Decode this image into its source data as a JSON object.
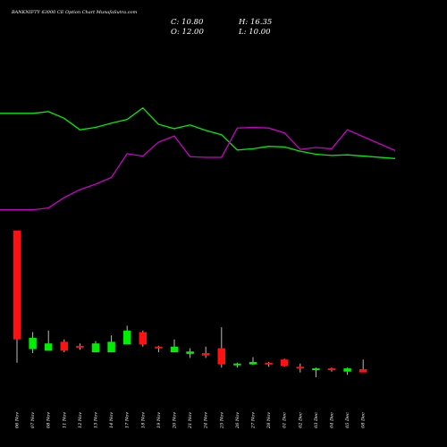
{
  "chart_data": {
    "type": "candlestick",
    "title": "BANKNIFTY 63000  CE Option  Chart MunafaSutra.com",
    "ohlc_summary": {
      "open": "O: 12.00",
      "high": "H: 16.35",
      "low": "L: 10.00",
      "close": "C: 10.80"
    },
    "categories": [
      "06 Nov",
      "07 Nov",
      "08 Nov",
      "11 Nov",
      "12 Nov",
      "13 Nov",
      "14 Nov",
      "17 Nov",
      "18 Nov",
      "19 Nov",
      "20 Nov",
      "21 Nov",
      "24 Nov",
      "25 Nov",
      "26 Nov",
      "27 Nov",
      "28 Nov",
      "01 Dec",
      "02 Dec",
      "03 Dec",
      "04 Dec",
      "05 Dec",
      "08 Dec"
    ],
    "candles": [
      {
        "o": 220,
        "h": 220,
        "l": 56,
        "c": 85
      },
      {
        "o": 73,
        "h": 94,
        "l": 68,
        "c": 87
      },
      {
        "o": 71,
        "h": 96,
        "l": 71,
        "c": 80
      },
      {
        "o": 82,
        "h": 85,
        "l": 69,
        "c": 71
      },
      {
        "o": 77,
        "h": 80,
        "l": 72,
        "c": 75
      },
      {
        "o": 69,
        "h": 83,
        "l": 69,
        "c": 80
      },
      {
        "o": 69,
        "h": 90,
        "l": 69,
        "c": 82
      },
      {
        "o": 79,
        "h": 102,
        "l": 79,
        "c": 96
      },
      {
        "o": 94,
        "h": 96,
        "l": 76,
        "c": 79
      },
      {
        "o": 76,
        "h": 77,
        "l": 69,
        "c": 74
      },
      {
        "o": 69,
        "h": 85,
        "l": 69,
        "c": 76
      },
      {
        "o": 67,
        "h": 74,
        "l": 62,
        "c": 70
      },
      {
        "o": 68,
        "h": 76,
        "l": 62,
        "c": 65
      },
      {
        "o": 74,
        "h": 100,
        "l": 50,
        "c": 54
      },
      {
        "o": 53,
        "h": 56,
        "l": 50,
        "c": 55
      },
      {
        "o": 54,
        "h": 63,
        "l": 53,
        "c": 57
      },
      {
        "o": 56,
        "h": 57,
        "l": 51,
        "c": 54
      },
      {
        "o": 60,
        "h": 61,
        "l": 51,
        "c": 52
      },
      {
        "o": 51,
        "h": 55,
        "l": 44,
        "c": 50
      },
      {
        "o": 47,
        "h": 50,
        "l": 38,
        "c": 49
      },
      {
        "o": 49,
        "h": 50,
        "l": 45,
        "c": 47
      },
      {
        "o": 45,
        "h": 50,
        "l": 41,
        "c": 49
      },
      {
        "o": 48,
        "h": 60,
        "l": 44,
        "c": 44
      }
    ],
    "series": [
      {
        "color": "#00ee00",
        "values": [
          58.0,
          58.0,
          58.3,
          57.2,
          55.3,
          55.7,
          56.4,
          57.0,
          58.9,
          56.2,
          55.5,
          56.1,
          55.2,
          54.5,
          52.0,
          52.2,
          52.6,
          52.5,
          51.8,
          51.3,
          51.1,
          51.2,
          50.6
        ]
      },
      {
        "color": "#cc00cc",
        "values": [
          42.2,
          42.2,
          42.5,
          44.2,
          45.5,
          46.4,
          47.5,
          51.4,
          51.0,
          53.3,
          54.3,
          50.9,
          50.8,
          50.8,
          55.6,
          55.7,
          55.6,
          54.8,
          52.1,
          52.4,
          52.2,
          55.3,
          51.9
        ]
      }
    ],
    "volume_panel": true,
    "grid": false,
    "legend": "none"
  },
  "colors": {
    "background": "#000000",
    "up": "#00ee00",
    "down": "#ff1111",
    "wick": "#bbbbbb",
    "text": "#ffffff"
  }
}
